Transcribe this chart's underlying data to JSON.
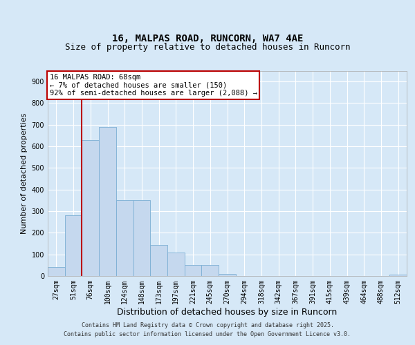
{
  "title_line1": "16, MALPAS ROAD, RUNCORN, WA7 4AE",
  "title_line2": "Size of property relative to detached houses in Runcorn",
  "xlabel": "Distribution of detached houses by size in Runcorn",
  "ylabel": "Number of detached properties",
  "bar_labels": [
    "27sqm",
    "51sqm",
    "76sqm",
    "100sqm",
    "124sqm",
    "148sqm",
    "173sqm",
    "197sqm",
    "221sqm",
    "245sqm",
    "270sqm",
    "294sqm",
    "318sqm",
    "342sqm",
    "367sqm",
    "391sqm",
    "415sqm",
    "439sqm",
    "464sqm",
    "488sqm",
    "512sqm"
  ],
  "bar_values": [
    40,
    280,
    630,
    690,
    350,
    350,
    145,
    110,
    50,
    50,
    10,
    0,
    0,
    0,
    0,
    0,
    0,
    0,
    0,
    0,
    5
  ],
  "bar_color": "#c5d8ee",
  "bar_edge_color": "#7bafd4",
  "property_line_x": 1.5,
  "property_line_color": "#bb0000",
  "annotation_text": "16 MALPAS ROAD: 68sqm\n← 7% of detached houses are smaller (150)\n92% of semi-detached houses are larger (2,088) →",
  "annotation_box_color": "#ffffff",
  "annotation_box_edge_color": "#bb0000",
  "ylim": [
    0,
    950
  ],
  "yticks": [
    0,
    100,
    200,
    300,
    400,
    500,
    600,
    700,
    800,
    900
  ],
  "fig_bg_color": "#d6e8f7",
  "plot_bg_color": "#d6e8f7",
  "footer_line1": "Contains HM Land Registry data © Crown copyright and database right 2025.",
  "footer_line2": "Contains public sector information licensed under the Open Government Licence v3.0.",
  "grid_color": "#ffffff",
  "title_fontsize": 10,
  "subtitle_fontsize": 9,
  "label_fontsize": 8,
  "tick_fontsize": 7
}
